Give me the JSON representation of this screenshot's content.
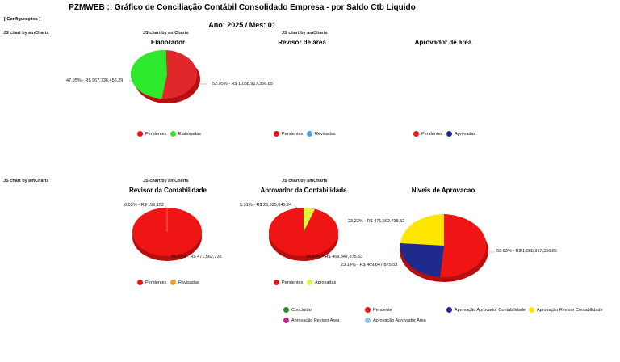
{
  "header": {
    "title": "PZMWEB :: Gráfico de Conciliação Contábil Consolidado Empresa - por Saldo Ctb Liquido",
    "config_link": "[ Configurações ]",
    "subtitle": "Ano: 2025 / Mes: 01"
  },
  "credit": "JS chart by amCharts",
  "colors": {
    "red": "#ef1515",
    "green": "#2de82d",
    "blue": "#1e2a8c",
    "yellow": "#ffe600",
    "lime": "#e3f53a",
    "orange": "#f39a2a",
    "lightblue": "#4aa3df",
    "darkgreen": "#2e8b2e",
    "magenta": "#c0208a",
    "skyblue": "#8ec3e6"
  },
  "charts": {
    "elaborador": {
      "title": "Elaborador",
      "labels": [
        "47.05% - R$ 967,736,456.29",
        "52.95% - R$ 1,088,917,356.85"
      ],
      "legend": [
        "Pendentes",
        "Elaboradas"
      ]
    },
    "revisor_area": {
      "title": "Revisor de área",
      "legend": [
        "Pendentes",
        "Revisadas"
      ]
    },
    "aprovador_area": {
      "title": "Aprovador de área",
      "legend": [
        "Pendentes",
        "Aprovadas"
      ]
    },
    "revisor_contab": {
      "title": "Revisor da Contabilidade",
      "labels": [
        "0.03% - R$ 159,152",
        "99.97% - R$ 471,562,736"
      ],
      "legend": [
        "Pendentes",
        "Revisadas"
      ]
    },
    "aprovador_contab": {
      "title": "Aprovador da Contabilidade",
      "labels": [
        "5.31% - R$ 26,325,845.24",
        "94.69% - R$ 469,847,875.53"
      ],
      "legend": [
        "Pendentes",
        "Aprovadas"
      ]
    },
    "niveis": {
      "title": "Niveis de Aprovacao",
      "labels": [
        "23.23% - R$ 471,562,735.52",
        "53.63% - R$ 1,088,917,356.85",
        "23.14% - R$ 469,847,875.53"
      ]
    }
  },
  "chart_data": [
    {
      "type": "pie",
      "title": "Elaborador",
      "slices": [
        {
          "label": "Pendentes",
          "percent": 52.95,
          "value": 1088917356.85
        },
        {
          "label": "Elaboradas",
          "percent": 47.05,
          "value": 967736456.29
        }
      ]
    },
    {
      "type": "pie",
      "title": "Revisor de área",
      "slices": []
    },
    {
      "type": "pie",
      "title": "Aprovador de área",
      "slices": []
    },
    {
      "type": "pie",
      "title": "Revisor da Contabilidade",
      "slices": [
        {
          "label": "Pendentes",
          "percent": 99.97,
          "value": 471562736
        },
        {
          "label": "Revisadas",
          "percent": 0.03,
          "value": 159152
        }
      ]
    },
    {
      "type": "pie",
      "title": "Aprovador da Contabilidade",
      "slices": [
        {
          "label": "Pendentes",
          "percent": 94.69,
          "value": 469847875.53
        },
        {
          "label": "Aprovadas",
          "percent": 5.31,
          "value": 26325845.24
        }
      ]
    },
    {
      "type": "pie",
      "title": "Niveis de Aprovacao",
      "slices": [
        {
          "label": "Pendente",
          "percent": 53.63,
          "value": 1088917356.85
        },
        {
          "label": "Aprovação Aprovador Contabilidade",
          "percent": 23.14,
          "value": 469847875.53
        },
        {
          "label": "Aprovação Revisor Contabilidade",
          "percent": 23.23,
          "value": 471562735.52
        }
      ]
    }
  ],
  "bottom_legend": [
    "Concluído",
    "Pendente",
    "Aprovação Aprovador Contabilidade",
    "Aprovação Revisor Contabilidade",
    "Aprovação Revisor Area",
    "Aprovação Aprovador Area"
  ]
}
